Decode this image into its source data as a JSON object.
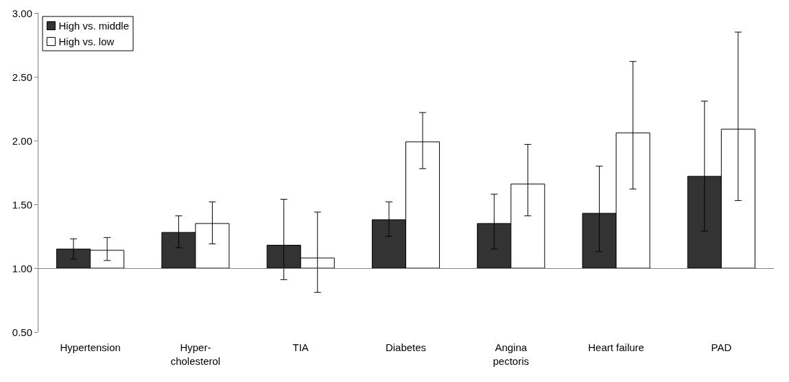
{
  "chart_data": {
    "type": "bar",
    "categories": [
      "Hypertension",
      "Hyper-\ncholesterol",
      "TIA",
      "Diabetes",
      "Angina\npectoris",
      "Heart failure",
      "PAD"
    ],
    "series": [
      {
        "name": "High vs. middle",
        "color": "#333333",
        "base": [
          1,
          1,
          1,
          1,
          1,
          1,
          1
        ],
        "values": [
          0.15,
          0.28,
          0.18,
          0.38,
          0.35,
          0.43,
          0.72
        ],
        "errors": [
          [
            1.07,
            1.23
          ],
          [
            1.16,
            1.41
          ],
          [
            0.91,
            1.54
          ],
          [
            1.25,
            1.52
          ],
          [
            1.15,
            1.58
          ],
          [
            1.13,
            1.8
          ],
          [
            1.29,
            2.31
          ]
        ]
      },
      {
        "name": "High vs. low",
        "color": "#ffffff",
        "base": [
          1,
          1,
          1,
          1,
          1,
          1,
          1
        ],
        "values": [
          0.14,
          0.35,
          0.08,
          0.99,
          0.66,
          1.06,
          1.09
        ],
        "errors": [
          [
            1.06,
            1.24
          ],
          [
            1.19,
            1.52
          ],
          [
            0.81,
            1.44
          ],
          [
            1.78,
            2.22
          ],
          [
            1.41,
            1.97
          ],
          [
            1.62,
            2.62
          ],
          [
            1.53,
            2.85
          ]
        ]
      }
    ],
    "ylim": [
      0.5,
      3
    ],
    "yticks": [
      {
        "value": 0.5,
        "label": "0.50"
      },
      {
        "value": 1,
        "label": "1.00"
      },
      {
        "value": 1.5,
        "label": "1.50"
      },
      {
        "value": 2,
        "label": "2.00"
      },
      {
        "value": 2.5,
        "label": "2.50"
      },
      {
        "value": 3,
        "label": "3.00"
      }
    ],
    "ref_lines": [
      {
        "axis": "y",
        "value": 1,
        "color": "#808080"
      }
    ],
    "legend": "top left",
    "grid": false
  }
}
